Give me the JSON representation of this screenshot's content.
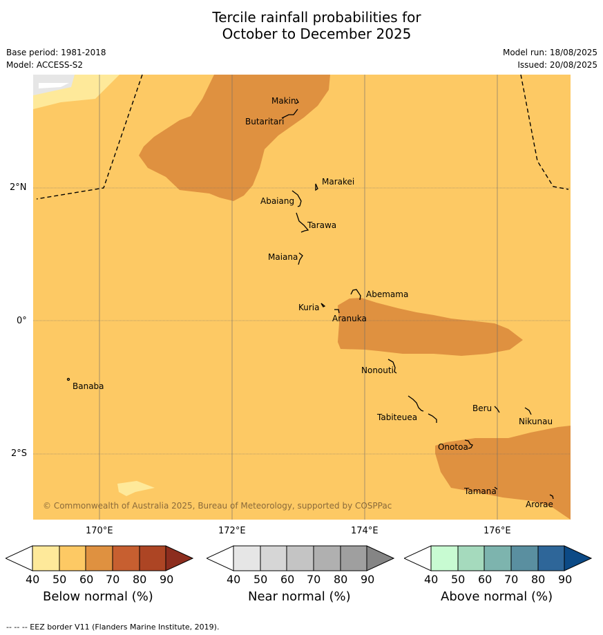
{
  "title_line1": "Tercile rainfall probabilities for",
  "title_line2": "October to December 2025",
  "base_period": "Base period: 1981-2018",
  "model": "Model: ACCESS-S2",
  "model_run": "Model run: 18/08/2025",
  "issued": "Issued: 20/08/2025",
  "lat_labels": [
    "2°N",
    "0°",
    "2°S"
  ],
  "lon_labels": [
    "170°E",
    "172°E",
    "174°E",
    "176°E"
  ],
  "islands": [
    "Makin",
    "Butaritari",
    "Marakei",
    "Abaiang",
    "Tarawa",
    "Maiana",
    "Abemama",
    "Kuria",
    "Aranuka",
    "Banaba",
    "Nonouti",
    "Beru",
    "Nikunau",
    "Tabiteuea",
    "Onotoa",
    "Tamana",
    "Arorae"
  ],
  "copyright": "© Commonwealth of Australia 2025, Bureau of Meteorology, supported by COSPPac",
  "colorbars": [
    {
      "title": "Below normal (%)",
      "ticks": [
        "40",
        "50",
        "60",
        "70",
        "80",
        "90"
      ],
      "colors": [
        "#ffffff",
        "#fee99a",
        "#fdc964",
        "#df9140",
        "#c75f30",
        "#ad4524",
        "#8c2d1e"
      ]
    },
    {
      "title": "Near normal (%)",
      "ticks": [
        "40",
        "50",
        "60",
        "70",
        "80",
        "90"
      ],
      "colors": [
        "#ffffff",
        "#e6e6e6",
        "#d6d6d6",
        "#c4c4c4",
        "#b0b0b0",
        "#9f9f9f",
        "#858585"
      ]
    },
    {
      "title": "Above normal (%)",
      "ticks": [
        "40",
        "50",
        "60",
        "70",
        "80",
        "90"
      ],
      "colors": [
        "#ffffff",
        "#c8fbd2",
        "#a5dabd",
        "#7db4ae",
        "#5a8fa0",
        "#2e6699",
        "#0c4a86"
      ]
    }
  ],
  "footer": "--  --  -- EEZ border V11 (Flanders Marine Institute, 2019).",
  "map_colors": {
    "base": "#fdc964",
    "light": "#fee99a",
    "mid": "#df9140",
    "near_normal": "#e6e6e6"
  }
}
